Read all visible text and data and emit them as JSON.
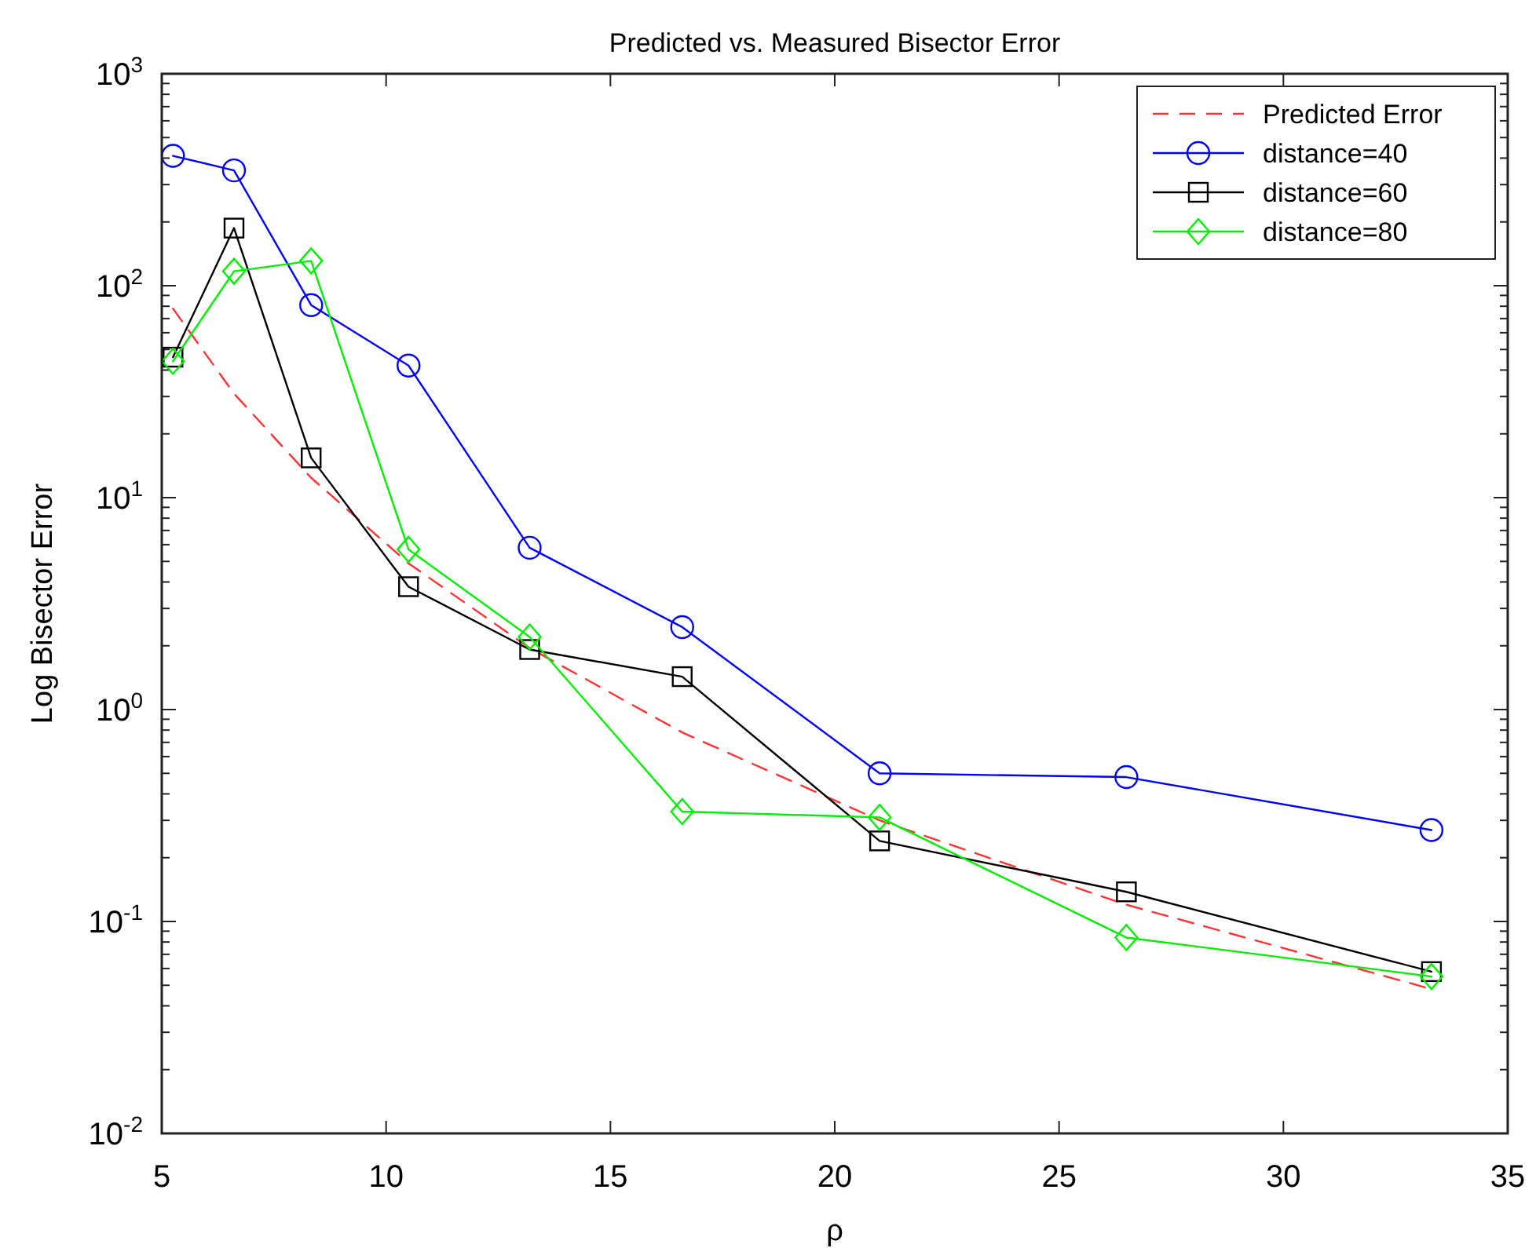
{
  "chart_data": {
    "type": "line",
    "title": "Predicted vs. Measured Bisector Error",
    "xlabel": "ρ",
    "ylabel": "Log Bisector Error",
    "log": "y",
    "legend": "top right",
    "xlim": [
      5,
      35
    ],
    "xticks": [
      5,
      10,
      15,
      20,
      25,
      30,
      35
    ],
    "ylim": [
      0.01,
      1000
    ],
    "yticks": [
      {
        "value": 0.01,
        "label": "10$^{-2}$"
      },
      {
        "value": 0.02,
        "label": null
      },
      {
        "value": 0.03,
        "label": null
      },
      {
        "value": 0.04,
        "label": null
      },
      {
        "value": 0.05,
        "label": null
      },
      {
        "value": 0.06,
        "label": null
      },
      {
        "value": 0.07,
        "label": null
      },
      {
        "value": 0.08,
        "label": null
      },
      {
        "value": 0.09,
        "label": null
      },
      {
        "value": 0.1,
        "label": "10$^{-1}$"
      },
      {
        "value": 0.2,
        "label": null
      },
      {
        "value": 0.3,
        "label": null
      },
      {
        "value": 0.4,
        "label": null
      },
      {
        "value": 0.5,
        "label": null
      },
      {
        "value": 0.6,
        "label": null
      },
      {
        "value": 0.7,
        "label": null
      },
      {
        "value": 0.8,
        "label": null
      },
      {
        "value": 0.9,
        "label": null
      },
      {
        "value": 1,
        "label": "10$^{0}$"
      },
      {
        "value": 2,
        "label": null
      },
      {
        "value": 3,
        "label": null
      },
      {
        "value": 4,
        "label": null
      },
      {
        "value": 5,
        "label": null
      },
      {
        "value": 6,
        "label": null
      },
      {
        "value": 7,
        "label": null
      },
      {
        "value": 8,
        "label": null
      },
      {
        "value": 9,
        "label": null
      },
      {
        "value": 10,
        "label": "10$^{1}$"
      },
      {
        "value": 20,
        "label": null
      },
      {
        "value": 30,
        "label": null
      },
      {
        "value": 40,
        "label": null
      },
      {
        "value": 50,
        "label": null
      },
      {
        "value": 60,
        "label": null
      },
      {
        "value": 70,
        "label": null
      },
      {
        "value": 80,
        "label": null
      },
      {
        "value": 90,
        "label": null
      },
      {
        "value": 100,
        "label": "10$^{2}$"
      },
      {
        "value": 200,
        "label": null
      },
      {
        "value": 300,
        "label": null
      },
      {
        "value": 400,
        "label": null
      },
      {
        "value": 500,
        "label": null
      },
      {
        "value": 600,
        "label": null
      },
      {
        "value": 700,
        "label": null
      },
      {
        "value": 800,
        "label": null
      },
      {
        "value": 900,
        "label": null
      },
      {
        "value": 1000,
        "label": "10$^{3}$"
      }
    ],
    "x": [
      5.25,
      6.61,
      8.33,
      10.5,
      13.2,
      16.6,
      21.0,
      26.5,
      33.3
    ],
    "series": [
      {
        "name": "Predicted Error",
        "color": "#ff3333",
        "line_style": "dashed",
        "marker": "none",
        "values": [
          78,
          31,
          12.4,
          4.9,
          1.95,
          0.78,
          0.3,
          0.12,
          0.048
        ]
      },
      {
        "name": "distance=40",
        "color": "#0000ff",
        "line_style": "solid",
        "marker": "circle",
        "values": [
          410,
          350,
          81,
          42,
          5.8,
          2.45,
          0.5,
          0.48,
          0.27
        ]
      },
      {
        "name": "distance=60",
        "color": "#000000",
        "line_style": "solid",
        "marker": "square",
        "values": [
          46,
          187,
          15.4,
          3.8,
          1.92,
          1.43,
          0.24,
          0.138,
          0.058
        ]
      },
      {
        "name": "distance=80",
        "color": "#00ee00",
        "line_style": "solid",
        "marker": "diamond",
        "values": [
          44,
          117,
          131,
          5.7,
          2.2,
          0.33,
          0.31,
          0.084,
          0.055
        ]
      }
    ]
  }
}
